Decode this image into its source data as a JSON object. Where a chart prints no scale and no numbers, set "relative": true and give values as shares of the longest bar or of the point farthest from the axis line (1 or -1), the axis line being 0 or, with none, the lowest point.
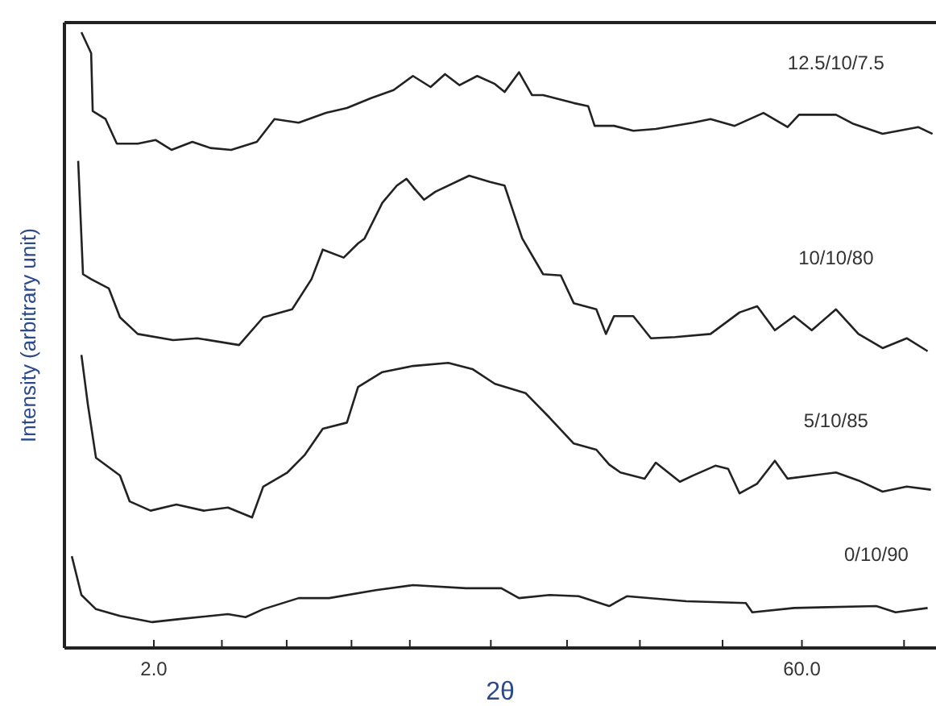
{
  "chart_data": {
    "type": "line",
    "relative": true,
    "xlabel": "2θ",
    "ylabel": "Intensity (arbitrary unit)",
    "xlim": [
      -6,
      72
    ],
    "xticks": [
      {
        "value": 2,
        "label": "2.0"
      },
      {
        "value": 8.09,
        "label": null
      },
      {
        "value": 13.89,
        "label": null
      },
      {
        "value": 19.69,
        "label": null
      },
      {
        "value": 24.91,
        "label": null
      },
      {
        "value": 32.16,
        "label": null
      },
      {
        "value": 38.98,
        "label": null
      },
      {
        "value": 45.5,
        "label": null
      },
      {
        "value": 52.9,
        "label": null
      },
      {
        "value": 60,
        "label": "60.0"
      },
      {
        "value": 69.14,
        "label": null
      }
    ],
    "grid": false,
    "marker": "none",
    "line_style": "solid",
    "series": [
      {
        "name": "12.5/10/7.5",
        "color": "#222222",
        "x": [
          -4.48,
          -3.61,
          -3.47,
          -2.32,
          -1.31,
          0.56,
          2.15,
          3.58,
          5.45,
          7.05,
          8.92,
          11.22,
          12.8,
          14.96,
          17.41,
          19.28,
          21.44,
          23.46,
          25.19,
          26.77,
          28.06,
          29.36,
          30.94,
          32.52,
          33.39,
          34.68,
          35.84,
          36.84,
          39.58,
          40.87,
          41.45,
          43.18,
          44.91,
          46.92,
          50.24,
          51.82,
          53.98,
          56.56,
          58.72,
          59.74,
          63.05,
          64.63,
          67.22,
          70.4,
          71.69
        ],
        "values": [
          1.0,
          0.966,
          0.872,
          0.859,
          0.819,
          0.819,
          0.825,
          0.809,
          0.822,
          0.812,
          0.809,
          0.822,
          0.859,
          0.853,
          0.869,
          0.877,
          0.893,
          0.906,
          0.929,
          0.911,
          0.932,
          0.914,
          0.929,
          0.916,
          0.903,
          0.935,
          0.898,
          0.898,
          0.885,
          0.88,
          0.848,
          0.848,
          0.84,
          0.843,
          0.853,
          0.859,
          0.848,
          0.869,
          0.846,
          0.866,
          0.866,
          0.851,
          0.835,
          0.846,
          0.835
        ]
      },
      {
        "name": "10/10/80",
        "color": "#222222",
        "x": [
          -4.77,
          -4.34,
          -3.61,
          -2.03,
          -1.03,
          0.56,
          3.73,
          5.89,
          9.63,
          11.79,
          14.38,
          16.11,
          17.12,
          18.99,
          20.28,
          20.86,
          22.45,
          23.75,
          24.61,
          25.33,
          26.19,
          27.2,
          30.22,
          32.09,
          33.39,
          34.25,
          34.97,
          36.84,
          38.42,
          39.58,
          41.6,
          42.46,
          43.18,
          44.91,
          46.49,
          48.65,
          51.82,
          54.42,
          56.0,
          57.58,
          59.3,
          60.88,
          63.05,
          65.06,
          67.22,
          69.38,
          71.25
        ],
        "values": [
          0.791,
          0.607,
          0.599,
          0.584,
          0.537,
          0.51,
          0.5,
          0.503,
          0.492,
          0.537,
          0.55,
          0.599,
          0.647,
          0.634,
          0.657,
          0.665,
          0.723,
          0.751,
          0.762,
          0.746,
          0.728,
          0.741,
          0.767,
          0.757,
          0.751,
          0.704,
          0.665,
          0.607,
          0.605,
          0.56,
          0.55,
          0.51,
          0.539,
          0.539,
          0.503,
          0.505,
          0.51,
          0.545,
          0.555,
          0.516,
          0.539,
          0.516,
          0.55,
          0.51,
          0.487,
          0.503,
          0.482
        ]
      },
      {
        "name": "5/10/85",
        "color": "#222222",
        "x": [
          -4.48,
          -3.9,
          -3.18,
          -1.03,
          -0.16,
          1.71,
          4.02,
          6.47,
          8.63,
          10.79,
          11.79,
          13.95,
          15.53,
          17.12,
          19.28,
          20.28,
          22.45,
          25.19,
          28.35,
          30.51,
          32.52,
          35.26,
          37.42,
          39.58,
          41.6,
          42.75,
          43.76,
          45.92,
          46.92,
          49.08,
          50.24,
          52.26,
          53.4,
          54.42,
          56.0,
          57.58,
          58.72,
          63.05,
          65.06,
          67.22,
          69.38,
          71.54
        ],
        "values": [
          0.476,
          0.395,
          0.309,
          0.28,
          0.238,
          0.223,
          0.233,
          0.223,
          0.228,
          0.212,
          0.262,
          0.285,
          0.314,
          0.356,
          0.366,
          0.424,
          0.448,
          0.458,
          0.463,
          0.453,
          0.429,
          0.414,
          0.374,
          0.332,
          0.322,
          0.298,
          0.285,
          0.275,
          0.301,
          0.27,
          0.28,
          0.296,
          0.291,
          0.251,
          0.267,
          0.304,
          0.275,
          0.285,
          0.272,
          0.254,
          0.262,
          0.257
        ]
      },
      {
        "name": "0/10/90",
        "color": "#222222",
        "x": [
          -5.34,
          -4.48,
          -3.18,
          -1.03,
          1.86,
          4.31,
          8.63,
          10.21,
          11.79,
          14.96,
          17.69,
          21.87,
          25.19,
          29.93,
          33.1,
          34.68,
          37.42,
          40.02,
          42.75,
          44.33,
          49.66,
          54.98,
          55.56,
          59.3,
          66.66,
          68.38,
          71.25
        ],
        "values": [
          0.149,
          0.086,
          0.063,
          0.052,
          0.042,
          0.047,
          0.055,
          0.05,
          0.063,
          0.081,
          0.081,
          0.094,
          0.102,
          0.097,
          0.097,
          0.081,
          0.086,
          0.084,
          0.068,
          0.084,
          0.076,
          0.073,
          0.058,
          0.065,
          0.068,
          0.058,
          0.065
        ]
      }
    ]
  }
}
